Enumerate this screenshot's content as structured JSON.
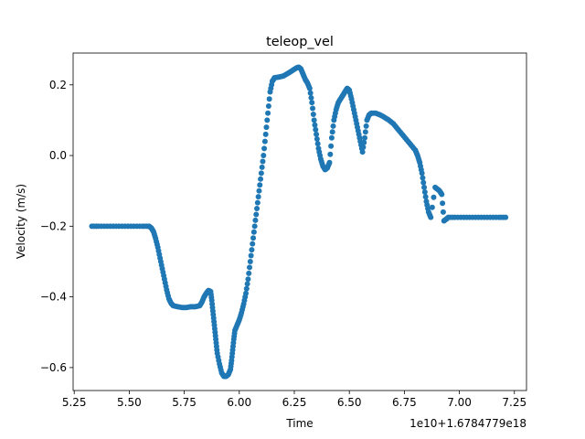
{
  "chart_data": {
    "type": "scatter",
    "title": "teleop_vel",
    "xlabel": "Time",
    "ylabel": "Velocity (m/s)",
    "x_offset_label": "1e10+1.6784779e18",
    "xlim": [
      5.245,
      7.305
    ],
    "ylim": [
      -0.665,
      0.29
    ],
    "x_ticks": [
      5.25,
      5.5,
      5.75,
      6.0,
      6.25,
      6.5,
      6.75,
      7.0,
      7.25
    ],
    "x_tick_labels": [
      "5.25",
      "5.50",
      "5.75",
      "6.00",
      "6.25",
      "6.50",
      "6.75",
      "7.00",
      "7.25"
    ],
    "y_ticks": [
      -0.6,
      -0.4,
      -0.2,
      0.0,
      0.2
    ],
    "y_tick_labels": [
      "−0.6",
      "−0.4",
      "−0.2",
      "0.0",
      "0.2"
    ],
    "grid": false,
    "legend": "none",
    "marker_color": "#1f77b4",
    "points": [
      [
        5.33,
        -0.2
      ],
      [
        5.36,
        -0.2
      ],
      [
        5.4,
        -0.2
      ],
      [
        5.44,
        -0.2
      ],
      [
        5.48,
        -0.2
      ],
      [
        5.52,
        -0.2
      ],
      [
        5.56,
        -0.2
      ],
      [
        5.59,
        -0.2
      ],
      [
        5.6,
        -0.205
      ],
      [
        5.61,
        -0.215
      ],
      [
        5.62,
        -0.235
      ],
      [
        5.63,
        -0.26
      ],
      [
        5.64,
        -0.29
      ],
      [
        5.65,
        -0.32
      ],
      [
        5.66,
        -0.35
      ],
      [
        5.67,
        -0.38
      ],
      [
        5.68,
        -0.405
      ],
      [
        5.69,
        -0.418
      ],
      [
        5.7,
        -0.425
      ],
      [
        5.72,
        -0.428
      ],
      [
        5.74,
        -0.43
      ],
      [
        5.76,
        -0.43
      ],
      [
        5.78,
        -0.428
      ],
      [
        5.8,
        -0.428
      ],
      [
        5.82,
        -0.425
      ],
      [
        5.83,
        -0.415
      ],
      [
        5.84,
        -0.4
      ],
      [
        5.85,
        -0.39
      ],
      [
        5.86,
        -0.382
      ],
      [
        5.87,
        -0.385
      ],
      [
        5.875,
        -0.41
      ],
      [
        5.88,
        -0.44
      ],
      [
        5.885,
        -0.47
      ],
      [
        5.89,
        -0.5
      ],
      [
        5.895,
        -0.53
      ],
      [
        5.9,
        -0.56
      ],
      [
        5.91,
        -0.59
      ],
      [
        5.92,
        -0.615
      ],
      [
        5.93,
        -0.625
      ],
      [
        5.94,
        -0.625
      ],
      [
        5.95,
        -0.62
      ],
      [
        5.96,
        -0.605
      ],
      [
        5.965,
        -0.58
      ],
      [
        5.97,
        -0.55
      ],
      [
        5.975,
        -0.52
      ],
      [
        5.98,
        -0.495
      ],
      [
        5.99,
        -0.48
      ],
      [
        6.0,
        -0.465
      ],
      [
        6.01,
        -0.445
      ],
      [
        6.02,
        -0.42
      ],
      [
        6.03,
        -0.39
      ],
      [
        6.04,
        -0.35
      ],
      [
        6.05,
        -0.3
      ],
      [
        6.06,
        -0.25
      ],
      [
        6.07,
        -0.2
      ],
      [
        6.08,
        -0.15
      ],
      [
        6.09,
        -0.1
      ],
      [
        6.1,
        -0.05
      ],
      [
        6.11,
        0.0
      ],
      [
        6.12,
        0.06
      ],
      [
        6.13,
        0.12
      ],
      [
        6.14,
        0.18
      ],
      [
        6.15,
        0.21
      ],
      [
        6.16,
        0.22
      ],
      [
        6.18,
        0.222
      ],
      [
        6.2,
        0.225
      ],
      [
        6.22,
        0.232
      ],
      [
        6.24,
        0.24
      ],
      [
        6.26,
        0.248
      ],
      [
        6.27,
        0.25
      ],
      [
        6.28,
        0.245
      ],
      [
        6.29,
        0.23
      ],
      [
        6.3,
        0.215
      ],
      [
        6.31,
        0.205
      ],
      [
        6.32,
        0.19
      ],
      [
        6.33,
        0.15
      ],
      [
        6.34,
        0.1
      ],
      [
        6.35,
        0.06
      ],
      [
        6.36,
        0.02
      ],
      [
        6.37,
        -0.01
      ],
      [
        6.38,
        -0.03
      ],
      [
        6.39,
        -0.04
      ],
      [
        6.4,
        -0.035
      ],
      [
        6.41,
        -0.02
      ],
      [
        6.42,
        0.05
      ],
      [
        6.43,
        0.1
      ],
      [
        6.44,
        0.13
      ],
      [
        6.45,
        0.15
      ],
      [
        6.46,
        0.16
      ],
      [
        6.47,
        0.17
      ],
      [
        6.48,
        0.18
      ],
      [
        6.49,
        0.19
      ],
      [
        6.5,
        0.185
      ],
      [
        6.51,
        0.16
      ],
      [
        6.52,
        0.13
      ],
      [
        6.53,
        0.1
      ],
      [
        6.54,
        0.07
      ],
      [
        6.55,
        0.04
      ],
      [
        6.56,
        0.01
      ],
      [
        6.57,
        0.05
      ],
      [
        6.58,
        0.1
      ],
      [
        6.59,
        0.115
      ],
      [
        6.6,
        0.12
      ],
      [
        6.62,
        0.12
      ],
      [
        6.64,
        0.115
      ],
      [
        6.66,
        0.108
      ],
      [
        6.68,
        0.1
      ],
      [
        6.7,
        0.09
      ],
      [
        6.72,
        0.075
      ],
      [
        6.74,
        0.06
      ],
      [
        6.76,
        0.045
      ],
      [
        6.78,
        0.03
      ],
      [
        6.8,
        0.015
      ],
      [
        6.81,
        0.0
      ],
      [
        6.82,
        -0.02
      ],
      [
        6.83,
        -0.05
      ],
      [
        6.84,
        -0.09
      ],
      [
        6.85,
        -0.13
      ],
      [
        6.86,
        -0.16
      ],
      [
        6.87,
        -0.175
      ],
      [
        6.89,
        -0.09
      ],
      [
        6.9,
        -0.095
      ],
      [
        6.91,
        -0.1
      ],
      [
        6.92,
        -0.11
      ],
      [
        6.93,
        -0.185
      ],
      [
        6.94,
        -0.18
      ],
      [
        6.95,
        -0.175
      ],
      [
        6.98,
        -0.175
      ],
      [
        7.02,
        -0.175
      ],
      [
        7.06,
        -0.175
      ],
      [
        7.1,
        -0.175
      ],
      [
        7.14,
        -0.175
      ],
      [
        7.18,
        -0.175
      ],
      [
        7.21,
        -0.175
      ]
    ]
  }
}
